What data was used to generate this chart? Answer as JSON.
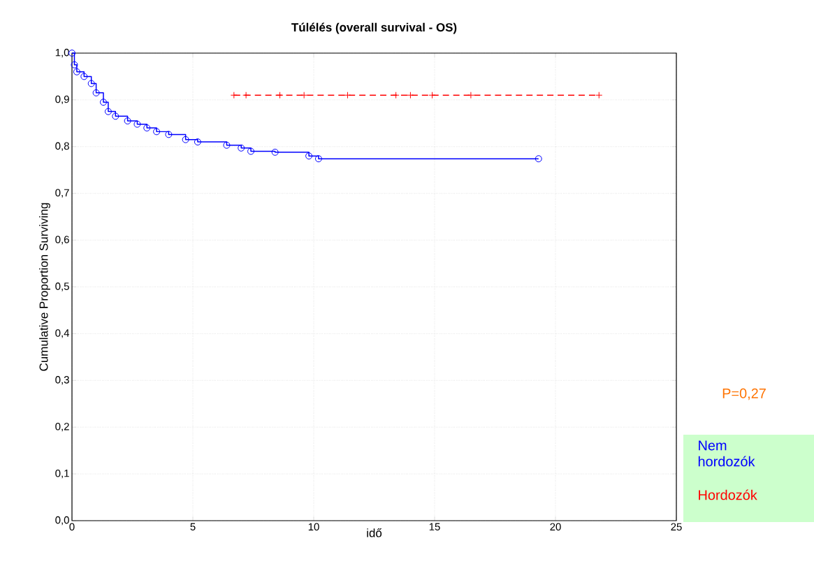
{
  "chart_data": {
    "type": "step",
    "title": "Túlélés (overall survival - OS)",
    "xlabel": "idő",
    "ylabel": "Cumulative Proportion Surviving",
    "annotations": [
      "P=0,27"
    ],
    "series": [
      {
        "name": "Nem hordozók",
        "color": "#0000ff",
        "marker": "circle",
        "line_style": "solid",
        "x": [
          0,
          0.1,
          0.2,
          0.5,
          0.8,
          1.0,
          1.3,
          1.5,
          1.8,
          2.3,
          2.7,
          3.1,
          3.5,
          4.0,
          4.7,
          5.2,
          6.4,
          7.0,
          7.4,
          8.4,
          9.8,
          10.2,
          19.3
        ],
        "values": [
          1.0,
          0.975,
          0.96,
          0.95,
          0.935,
          0.915,
          0.895,
          0.875,
          0.865,
          0.855,
          0.848,
          0.84,
          0.832,
          0.826,
          0.815,
          0.81,
          0.803,
          0.797,
          0.79,
          0.788,
          0.78,
          0.774,
          0.774
        ]
      },
      {
        "name": "Hordozók",
        "color": "#ff0000",
        "marker": "cross",
        "line_style": "dashed",
        "x": [
          6.7,
          7.2,
          8.6,
          9.6,
          11.4,
          13.4,
          14.0,
          14.9,
          16.5,
          21.8
        ],
        "values": [
          0.91,
          0.91,
          0.91,
          0.91,
          0.91,
          0.91,
          0.91,
          0.91,
          0.91,
          0.91
        ]
      }
    ],
    "xlim": [
      0,
      25
    ],
    "xticks": [
      0,
      5,
      10,
      15,
      20,
      25
    ],
    "ylim": [
      0,
      1
    ],
    "yticks": [
      {
        "value": 0,
        "label": "0,0"
      },
      {
        "value": 0.1,
        "label": "0,1"
      },
      {
        "value": 0.2,
        "label": "0,2"
      },
      {
        "value": 0.3,
        "label": "0,3"
      },
      {
        "value": 0.4,
        "label": "0,4"
      },
      {
        "value": 0.5,
        "label": "0,5"
      },
      {
        "value": 0.6,
        "label": "0,6"
      },
      {
        "value": 0.7,
        "label": "0,7"
      },
      {
        "value": 0.8,
        "label": "0,8"
      },
      {
        "value": 0.9,
        "label": "0,9"
      },
      {
        "value": 1,
        "label": "1,0"
      }
    ],
    "grid": true,
    "legend": "bottom right"
  }
}
